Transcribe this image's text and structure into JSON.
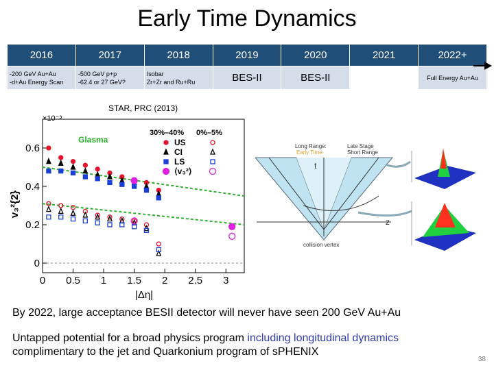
{
  "title": "Early Time Dynamics",
  "timeline": {
    "years": [
      "2016",
      "2017",
      "2018",
      "2019",
      "2020",
      "2021",
      "2022+"
    ],
    "programs": [
      [
        "-200 GeV Au+Au",
        "-d+Au Energy Scan"
      ],
      [
        "-500 GeV p+p",
        "-62.4 or 27 GeV?"
      ],
      [
        "Isobar",
        "Zr+Zr and Ru+Ru"
      ],
      [
        "BES-II"
      ],
      [
        "BES-II"
      ],
      [
        ""
      ],
      [
        "Full Energy Au+Au"
      ]
    ]
  },
  "chart_data": {
    "type": "scatter",
    "title": "STAR, PRC (2013)",
    "xlabel": "|Δη|",
    "ylabel": "v₃²{2}",
    "y_multiplier": "×10⁻³",
    "xlim": [
      0,
      3.3
    ],
    "ylim": [
      -0.05,
      0.75
    ],
    "x_ticks": [
      0,
      0.5,
      1,
      1.5,
      2,
      2.5,
      3
    ],
    "y_ticks": [
      0,
      0.2,
      0.4,
      0.6
    ],
    "legend_headers": [
      "30%–40%",
      "0%–5%"
    ],
    "legend_rows": [
      "US",
      "CI",
      "LS",
      "⟨v₃²⟩"
    ],
    "glasma_label": "Glasma",
    "series": [
      {
        "name": "US",
        "centrality": "30%–40%",
        "color": "#e8102c",
        "marker": "filled-circle",
        "x": [
          0.1,
          0.3,
          0.5,
          0.7,
          0.9,
          1.1,
          1.3,
          1.5,
          1.7,
          1.9
        ],
        "y": [
          0.6,
          0.55,
          0.53,
          0.51,
          0.49,
          0.47,
          0.45,
          0.43,
          0.42,
          0.38
        ]
      },
      {
        "name": "CI",
        "centrality": "30%–40%",
        "color": "#000000",
        "marker": "filled-triangle",
        "x": [
          0.1,
          0.3,
          0.5,
          0.7,
          0.9,
          1.1,
          1.3,
          1.5,
          1.7,
          1.9
        ],
        "y": [
          0.53,
          0.52,
          0.5,
          0.48,
          0.46,
          0.45,
          0.43,
          0.42,
          0.4,
          0.36
        ]
      },
      {
        "name": "LS",
        "centrality": "30%–40%",
        "color": "#1a3fd8",
        "marker": "filled-square",
        "x": [
          0.1,
          0.3,
          0.5,
          0.7,
          0.9,
          1.1,
          1.3,
          1.5,
          1.7,
          1.9
        ],
        "y": [
          0.48,
          0.48,
          0.47,
          0.45,
          0.44,
          0.42,
          0.41,
          0.4,
          0.38,
          0.34
        ]
      },
      {
        "name": "⟨v₃²⟩",
        "centrality": "30%–40%",
        "color": "#e020e0",
        "marker": "filled-circle",
        "x": [
          1.5,
          3.1
        ],
        "y": [
          0.43,
          0.19
        ]
      },
      {
        "name": "US",
        "centrality": "0%–5%",
        "color": "#e8102c",
        "marker": "open-circle",
        "x": [
          0.1,
          0.3,
          0.5,
          0.7,
          0.9,
          1.1,
          1.3,
          1.5,
          1.7,
          1.9
        ],
        "y": [
          0.31,
          0.3,
          0.29,
          0.27,
          0.25,
          0.24,
          0.23,
          0.22,
          0.2,
          0.1
        ]
      },
      {
        "name": "CI",
        "centrality": "0%–5%",
        "color": "#000000",
        "marker": "open-triangle",
        "x": [
          0.1,
          0.3,
          0.5,
          0.7,
          0.9,
          1.1,
          1.3,
          1.5,
          1.7,
          1.9
        ],
        "y": [
          0.28,
          0.27,
          0.26,
          0.25,
          0.24,
          0.23,
          0.22,
          0.21,
          0.18,
          0.05
        ]
      },
      {
        "name": "LS",
        "centrality": "0%–5%",
        "color": "#1a3fd8",
        "marker": "open-square",
        "x": [
          0.1,
          0.3,
          0.5,
          0.7,
          0.9,
          1.1,
          1.3,
          1.5,
          1.7,
          1.9
        ],
        "y": [
          0.24,
          0.24,
          0.23,
          0.22,
          0.21,
          0.2,
          0.2,
          0.19,
          0.17,
          0.07
        ]
      },
      {
        "name": "⟨v₃²⟩",
        "centrality": "0%–5%",
        "color": "#e020e0",
        "marker": "open-circle",
        "x": [
          1.5,
          3.1
        ],
        "y": [
          0.22,
          0.14
        ]
      }
    ],
    "glasma_lines": [
      {
        "color": "#2ab02a",
        "x": [
          0,
          3.3
        ],
        "y": [
          0.5,
          0.35
        ]
      },
      {
        "color": "#2ab02a",
        "x": [
          0,
          3.3
        ],
        "y": [
          0.31,
          0.2
        ]
      }
    ]
  },
  "diagram": {
    "long_range_label": "Long Range:",
    "early_time_label": "Early Time",
    "late_stage_label": "Late Stage",
    "short_range_label": "Short Range",
    "t_label": "t",
    "z_label": "z",
    "vertex_label": "collision vertex",
    "colors": {
      "cone": "#bfe3f0",
      "early": "#e6a020",
      "peak_top": "#ff3020",
      "peak_mid": "#20d040",
      "peak_base": "#2030c0"
    }
  },
  "body_lines": {
    "line1": "By 2022, large acceptance BESII detector will never have seen 200 GeV Au+Au",
    "line2_a": "Untapped potential for a broad physics program ",
    "line2_b": "including longitudinal dynamics",
    "line3": "complimentary to the jet and Quarkonium program of sPHENIX"
  },
  "page_number": "38"
}
